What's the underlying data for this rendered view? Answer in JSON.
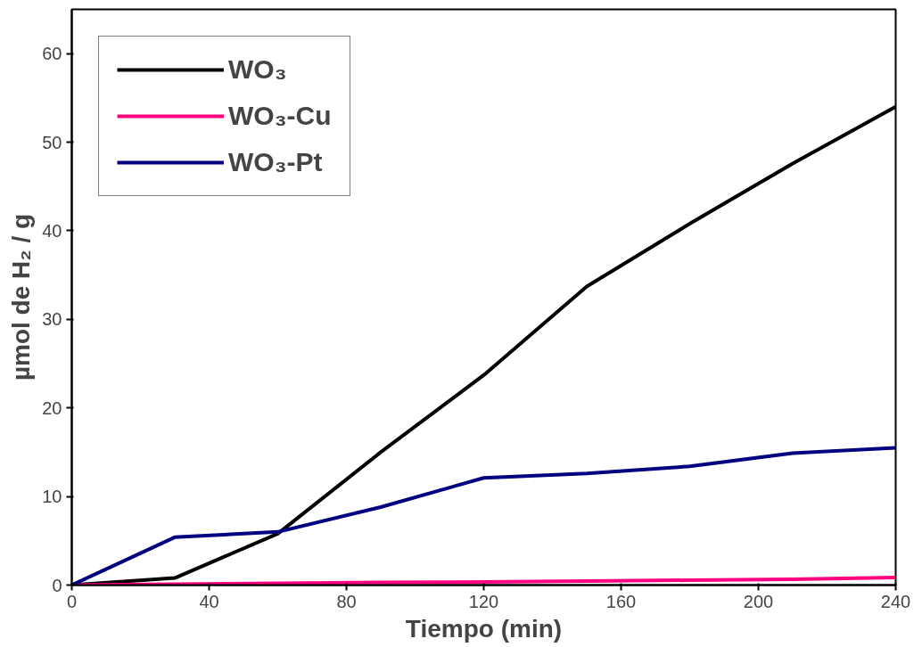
{
  "chart_data": {
    "type": "line",
    "xlabel": "Tiempo (min)",
    "ylabel": "µmol de H₂ / g",
    "x": [
      0,
      30,
      60,
      90,
      120,
      150,
      180,
      210,
      240
    ],
    "series": [
      {
        "name": "WO₃",
        "color": "#000000",
        "values": [
          0,
          0.8,
          5.8,
          15.0,
          23.7,
          33.7,
          40.8,
          47.6,
          54.0
        ]
      },
      {
        "name": "WO₃-Cu",
        "color": "#ff0080",
        "values": [
          0,
          0.1,
          0.2,
          0.3,
          0.35,
          0.45,
          0.55,
          0.65,
          0.85
        ]
      },
      {
        "name": "WO₃-Pt",
        "color": "#000080",
        "values": [
          0,
          5.4,
          6.0,
          8.8,
          12.1,
          12.6,
          13.4,
          14.9,
          15.5
        ]
      }
    ],
    "xlim": [
      0,
      240
    ],
    "ylim": [
      0,
      65
    ],
    "xticks": [
      0,
      40,
      80,
      120,
      160,
      200,
      240
    ],
    "yticks": [
      0,
      10,
      20,
      30,
      40,
      50,
      60
    ],
    "grid": false,
    "legend": "top left",
    "marker": "none",
    "line_style": "solid"
  }
}
